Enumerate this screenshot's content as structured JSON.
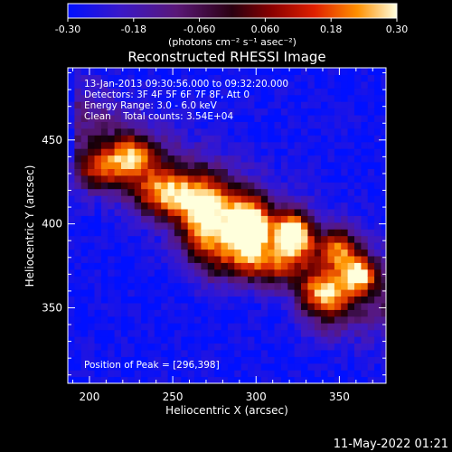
{
  "chart_data": {
    "type": "heatmap",
    "title": "Reconstructed RHESSI Image",
    "xlabel": "Heliocentric X (arcsec)",
    "ylabel": "Heliocentric Y (arcsec)",
    "xlim": [
      187,
      378
    ],
    "ylim": [
      305,
      493
    ],
    "x_ticks": [
      200,
      250,
      300,
      350
    ],
    "y_ticks": [
      350,
      400,
      450
    ],
    "colorbar": {
      "min": -0.3,
      "max": 0.3,
      "ticks": [
        "-0.30",
        "-0.18",
        "-0.060",
        "0.060",
        "0.18",
        "0.30"
      ],
      "label_units": "(photons cm⁻² s⁻¹ asec⁻²)"
    },
    "annotations": {
      "time_range": "13-Jan-2013 09:30:56.000 to 09:32:20.000",
      "detectors": "Detectors: 3F 4F 5F 6F 7F 8F, Att 0",
      "energy": "Energy Range: 3.0 - 6.0 keV",
      "method_counts": "Clean    Total counts: 3.54E+04",
      "peak": "Position of Peak = [296,398]"
    },
    "peak_position": [
      296,
      398
    ],
    "footer_timestamp": "11-May-2022 01:21"
  }
}
